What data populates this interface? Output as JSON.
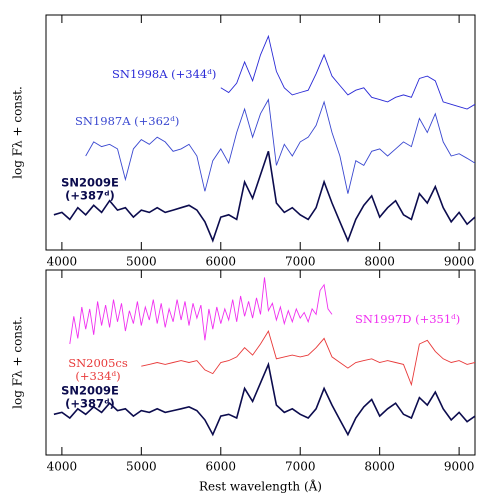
{
  "chart_data": [
    {
      "type": "line",
      "ylabel": "log Fλ + const.",
      "xlim": [
        3800,
        9200
      ],
      "xticks": [
        4000,
        5000,
        6000,
        7000,
        8000,
        9000
      ],
      "ylim": [
        0,
        10
      ],
      "series": [
        {
          "label": [
            "SN1998A (+344ᵈ)"
          ],
          "color": "#2a2ad6",
          "x": [
            6000,
            6100,
            6200,
            6300,
            6400,
            6500,
            6600,
            6700,
            6800,
            6900,
            7000,
            7100,
            7200,
            7300,
            7400,
            7500,
            7600,
            7700,
            7800,
            7900,
            8000,
            8100,
            8200,
            8300,
            8400,
            8500,
            8600,
            8700,
            8800,
            8900,
            9000,
            9100,
            9200
          ],
          "values": [
            6.9,
            6.7,
            7.1,
            8.0,
            7.2,
            8.3,
            9.1,
            7.6,
            6.9,
            6.6,
            6.7,
            6.8,
            7.5,
            8.3,
            7.4,
            7.0,
            6.6,
            6.8,
            6.9,
            6.5,
            6.4,
            6.3,
            6.5,
            6.6,
            6.5,
            7.3,
            7.4,
            7.2,
            6.3,
            6.2,
            6.1,
            6.0,
            6.2
          ]
        },
        {
          "label": [
            "SN1987A (+362ᵈ)"
          ],
          "color": "#3a48d0",
          "x": [
            4300,
            4400,
            4500,
            4600,
            4700,
            4800,
            4900,
            5000,
            5100,
            5200,
            5300,
            5400,
            5500,
            5600,
            5700,
            5800,
            5900,
            6000,
            6100,
            6200,
            6300,
            6400,
            6500,
            6600,
            6700,
            6800,
            6900,
            7000,
            7100,
            7200,
            7300,
            7400,
            7500,
            7600,
            7700,
            7800,
            7900,
            8000,
            8100,
            8200,
            8300,
            8400,
            8500,
            8600,
            8700,
            8800,
            8900,
            9000,
            9100,
            9200
          ],
          "values": [
            4.0,
            4.6,
            4.4,
            4.5,
            4.3,
            3.0,
            4.3,
            4.7,
            4.5,
            4.8,
            4.6,
            4.2,
            4.3,
            4.5,
            4.0,
            2.5,
            3.8,
            4.3,
            3.7,
            5.0,
            6.0,
            4.8,
            5.8,
            6.4,
            3.6,
            4.5,
            4.0,
            4.6,
            4.8,
            5.3,
            6.3,
            5.0,
            4.0,
            2.4,
            3.8,
            3.6,
            4.2,
            4.3,
            4.0,
            4.3,
            4.6,
            4.4,
            5.6,
            5.0,
            5.8,
            4.6,
            4.0,
            4.1,
            3.9,
            3.7
          ]
        },
        {
          "label": [
            "SN2009E",
            "(+387ᵈ)"
          ],
          "color": "#0c0c4e",
          "x": [
            3900,
            4000,
            4100,
            4200,
            4300,
            4400,
            4500,
            4600,
            4700,
            4800,
            4900,
            5000,
            5100,
            5200,
            5300,
            5400,
            5500,
            5600,
            5700,
            5800,
            5900,
            6000,
            6100,
            6200,
            6300,
            6400,
            6500,
            6600,
            6700,
            6800,
            6900,
            7000,
            7100,
            7200,
            7300,
            7400,
            7500,
            7600,
            7700,
            7800,
            7900,
            8000,
            8100,
            8200,
            8300,
            8400,
            8500,
            8600,
            8700,
            8800,
            8900,
            9000,
            9100,
            9200
          ],
          "values": [
            1.5,
            1.6,
            1.3,
            1.8,
            1.5,
            1.9,
            1.6,
            2.1,
            1.7,
            1.8,
            1.4,
            1.7,
            1.6,
            1.8,
            1.6,
            1.7,
            1.8,
            1.9,
            1.7,
            1.2,
            0.4,
            1.4,
            1.5,
            1.3,
            2.9,
            2.2,
            3.2,
            4.2,
            2.0,
            1.6,
            1.8,
            1.5,
            1.3,
            1.8,
            2.9,
            2.0,
            1.2,
            0.4,
            1.3,
            1.9,
            2.3,
            1.4,
            1.8,
            2.1,
            1.5,
            1.3,
            2.4,
            2.0,
            2.7,
            1.8,
            1.2,
            1.6,
            1.1,
            1.4
          ]
        }
      ]
    },
    {
      "type": "line",
      "ylabel": "log Fλ + const.",
      "xlabel": "Rest wavelength (Å)",
      "xlim": [
        3800,
        9200
      ],
      "xticks": [
        4000,
        5000,
        6000,
        7000,
        8000,
        9000
      ],
      "ylim": [
        0,
        10
      ],
      "series": [
        {
          "label": [
            "SN1997D (+351ᵈ)"
          ],
          "color": "#f030f0",
          "x": [
            4100,
            4150,
            4200,
            4250,
            4300,
            4350,
            4400,
            4450,
            4500,
            4550,
            4600,
            4650,
            4700,
            4750,
            4800,
            4850,
            4900,
            4950,
            5000,
            5050,
            5100,
            5150,
            5200,
            5250,
            5300,
            5350,
            5400,
            5450,
            5500,
            5550,
            5600,
            5650,
            5700,
            5750,
            5800,
            5850,
            5900,
            5950,
            6000,
            6050,
            6100,
            6150,
            6200,
            6250,
            6300,
            6350,
            6400,
            6450,
            6500,
            6550,
            6600,
            6650,
            6700,
            6750,
            6800,
            6850,
            6900,
            6950,
            7000,
            7050,
            7100,
            7150,
            7200,
            7250,
            7300,
            7350,
            7400
          ],
          "values": [
            6.0,
            7.5,
            6.3,
            8.0,
            6.8,
            7.9,
            6.5,
            8.3,
            7.0,
            8.1,
            6.9,
            8.4,
            7.2,
            8.2,
            6.7,
            7.8,
            7.1,
            8.3,
            7.0,
            8.0,
            7.3,
            8.4,
            7.1,
            8.2,
            6.9,
            7.9,
            7.2,
            8.4,
            7.3,
            8.3,
            7.0,
            8.2,
            7.4,
            8.1,
            6.2,
            7.9,
            6.8,
            8.0,
            7.1,
            7.9,
            7.3,
            8.4,
            7.2,
            8.6,
            7.5,
            8.3,
            7.4,
            8.5,
            7.6,
            9.6,
            7.8,
            8.2,
            7.3,
            8.0,
            7.1,
            7.8,
            7.2,
            7.9,
            7.4,
            7.7,
            7.2,
            7.9,
            7.6,
            8.9,
            9.2,
            7.9,
            7.6
          ]
        },
        {
          "label": [
            "SN2005cs",
            "(+334ᵈ)"
          ],
          "color": "#e83a3a",
          "x": [
            5000,
            5100,
            5200,
            5300,
            5400,
            5500,
            5600,
            5700,
            5800,
            5900,
            6000,
            6100,
            6200,
            6300,
            6400,
            6500,
            6600,
            6700,
            6800,
            6900,
            7000,
            7100,
            7200,
            7300,
            7400,
            7500,
            7600,
            7700,
            7800,
            7900,
            8000,
            8100,
            8200,
            8300,
            8400,
            8500,
            8600,
            8700,
            8800,
            8900,
            9000,
            9100,
            9200
          ],
          "values": [
            4.8,
            4.9,
            5.0,
            4.9,
            5.0,
            5.1,
            5.0,
            5.1,
            4.6,
            4.4,
            5.0,
            5.1,
            5.3,
            5.8,
            5.4,
            6.0,
            6.7,
            5.2,
            5.3,
            5.4,
            5.3,
            5.4,
            5.8,
            6.3,
            5.3,
            5.0,
            4.7,
            5.0,
            5.1,
            5.2,
            5.0,
            5.1,
            5.0,
            4.9,
            3.8,
            6.0,
            6.2,
            5.6,
            5.2,
            5.0,
            5.1,
            4.9,
            5.0
          ]
        },
        {
          "label": [
            "SN2009E",
            "(+387ᵈ)"
          ],
          "color": "#0c0c4e",
          "x": [
            3900,
            4000,
            4100,
            4200,
            4300,
            4400,
            4500,
            4600,
            4700,
            4800,
            4900,
            5000,
            5100,
            5200,
            5300,
            5400,
            5500,
            5600,
            5700,
            5800,
            5900,
            6000,
            6100,
            6200,
            6300,
            6400,
            6500,
            6600,
            6700,
            6800,
            6900,
            7000,
            7100,
            7200,
            7300,
            7400,
            7500,
            7600,
            7700,
            7800,
            7900,
            8000,
            8100,
            8200,
            8300,
            8400,
            8500,
            8600,
            8700,
            8800,
            8900,
            9000,
            9100,
            9200
          ],
          "values": [
            2.2,
            2.3,
            2.0,
            2.5,
            2.2,
            2.6,
            2.3,
            2.8,
            2.4,
            2.5,
            2.1,
            2.4,
            2.3,
            2.5,
            2.3,
            2.4,
            2.5,
            2.6,
            2.4,
            1.9,
            1.1,
            2.1,
            2.2,
            2.0,
            3.6,
            2.9,
            3.9,
            4.9,
            2.7,
            2.3,
            2.5,
            2.2,
            2.0,
            2.5,
            3.6,
            2.7,
            1.9,
            1.1,
            2.0,
            2.6,
            3.0,
            2.1,
            2.5,
            2.8,
            2.2,
            2.0,
            3.1,
            2.7,
            3.4,
            2.5,
            1.9,
            2.3,
            1.8,
            2.1
          ]
        }
      ]
    }
  ]
}
